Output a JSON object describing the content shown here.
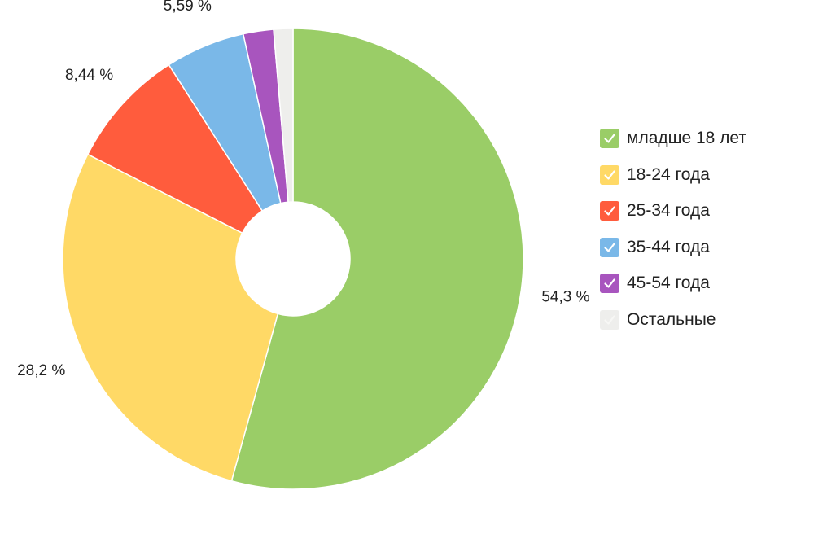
{
  "chart_data": {
    "type": "pie",
    "donut": true,
    "start_angle_deg": 0,
    "direction": "clockwise",
    "slices": [
      {
        "label": "младше 18 лет",
        "value": 54.3,
        "color": "#9ACD67",
        "value_label": "54,3 %",
        "checked": true
      },
      {
        "label": "18-24 года",
        "value": 28.2,
        "color": "#FFD966",
        "value_label": "28,2 %",
        "checked": true
      },
      {
        "label": "25-34 года",
        "value": 8.44,
        "color": "#FF5C3D",
        "value_label": "8,44 %",
        "checked": true
      },
      {
        "label": "35-44 года",
        "value": 5.59,
        "color": "#7AB8E8",
        "value_label": "5,59 %",
        "checked": true
      },
      {
        "label": "45-54 года",
        "value": 2.12,
        "color": "#A855BE",
        "value_label": "",
        "checked": true
      },
      {
        "label": "Остальные",
        "value": 1.35,
        "color": "#EEEEEC",
        "value_label": "",
        "checked": false
      }
    ],
    "legend_position": "right"
  }
}
